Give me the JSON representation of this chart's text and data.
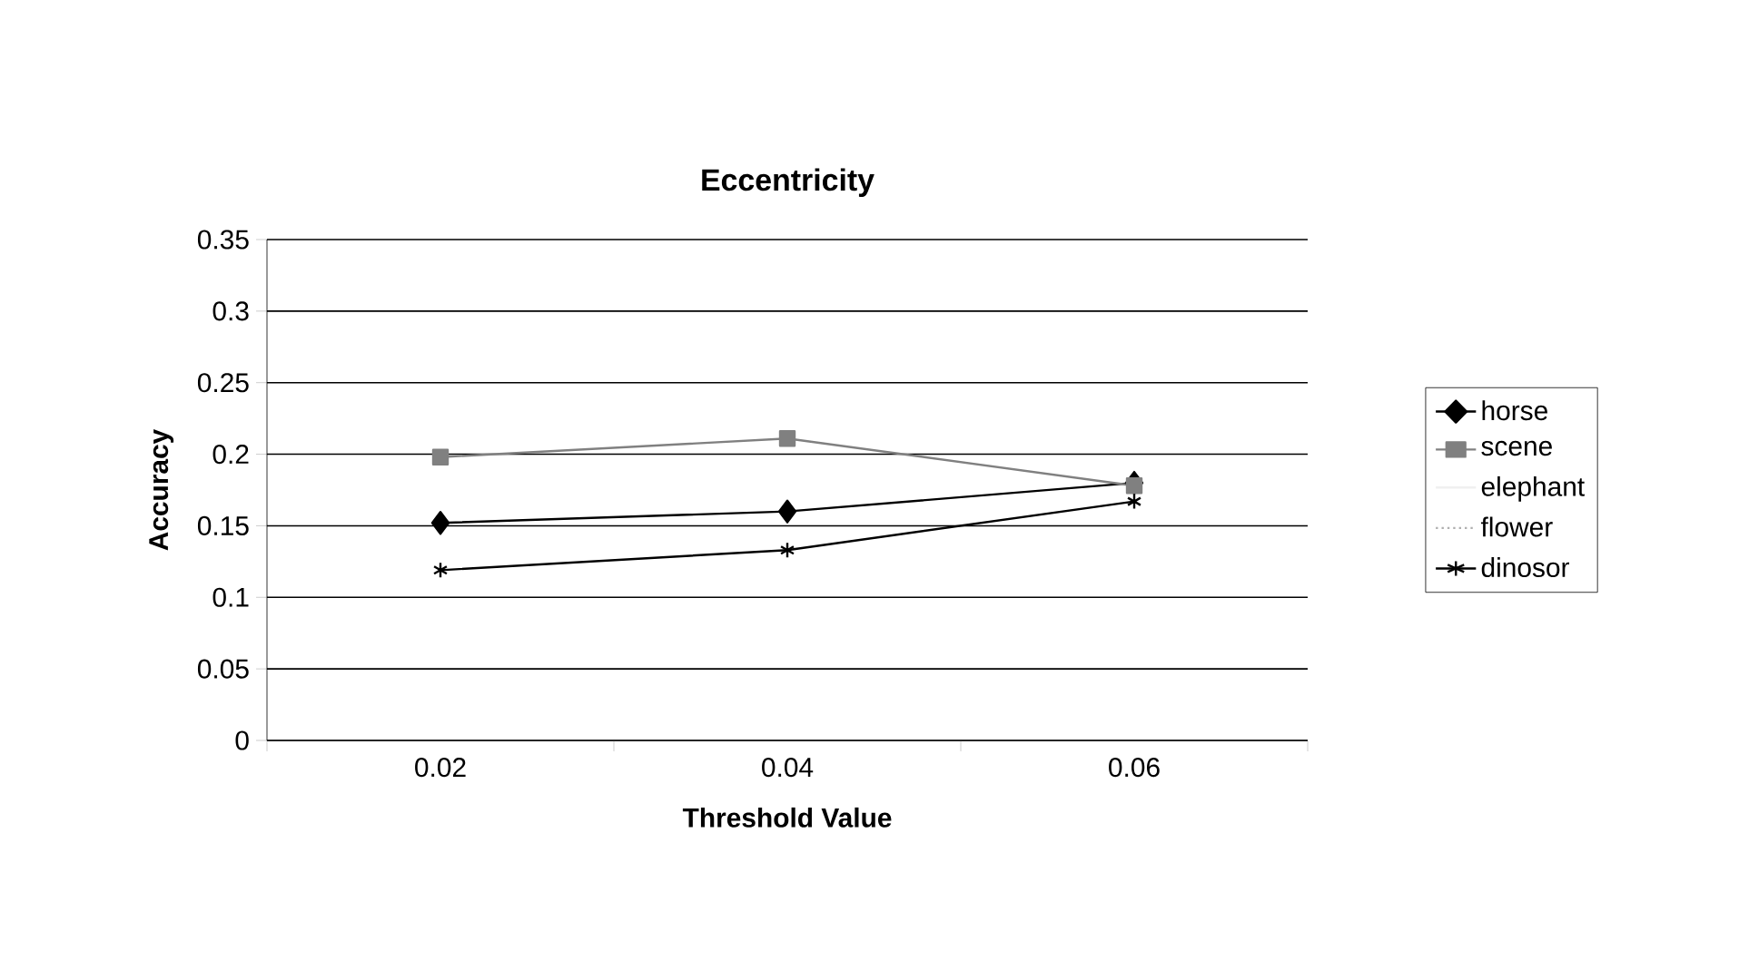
{
  "chart_data": {
    "type": "line",
    "title": "Eccentricity",
    "xlabel": "Threshold Value",
    "ylabel": "Accuracy",
    "categories": [
      "0.02",
      "0.04",
      "0.06"
    ],
    "series": [
      {
        "name": "horse",
        "color": "#000000",
        "marker": "diamond",
        "values": [
          0.152,
          0.16,
          0.18
        ]
      },
      {
        "name": "scene",
        "color": "#808080",
        "marker": "square",
        "values": [
          0.198,
          0.211,
          0.178
        ]
      },
      {
        "name": "elephant",
        "color": "#f0f0f0",
        "marker": "none",
        "values": [
          null,
          null,
          null
        ]
      },
      {
        "name": "flower",
        "color": "#b0b0b0",
        "marker": "none",
        "line_style": "dotted",
        "values": [
          null,
          null,
          null
        ]
      },
      {
        "name": "dinosor",
        "color": "#000000",
        "marker": "cross",
        "values": [
          0.119,
          0.133,
          0.167
        ]
      }
    ],
    "ylim": [
      0,
      0.35
    ],
    "yticks": [
      0,
      0.05,
      0.1,
      0.15,
      0.2,
      0.25,
      0.3,
      0.35
    ],
    "grid": "y",
    "legend": "right"
  }
}
